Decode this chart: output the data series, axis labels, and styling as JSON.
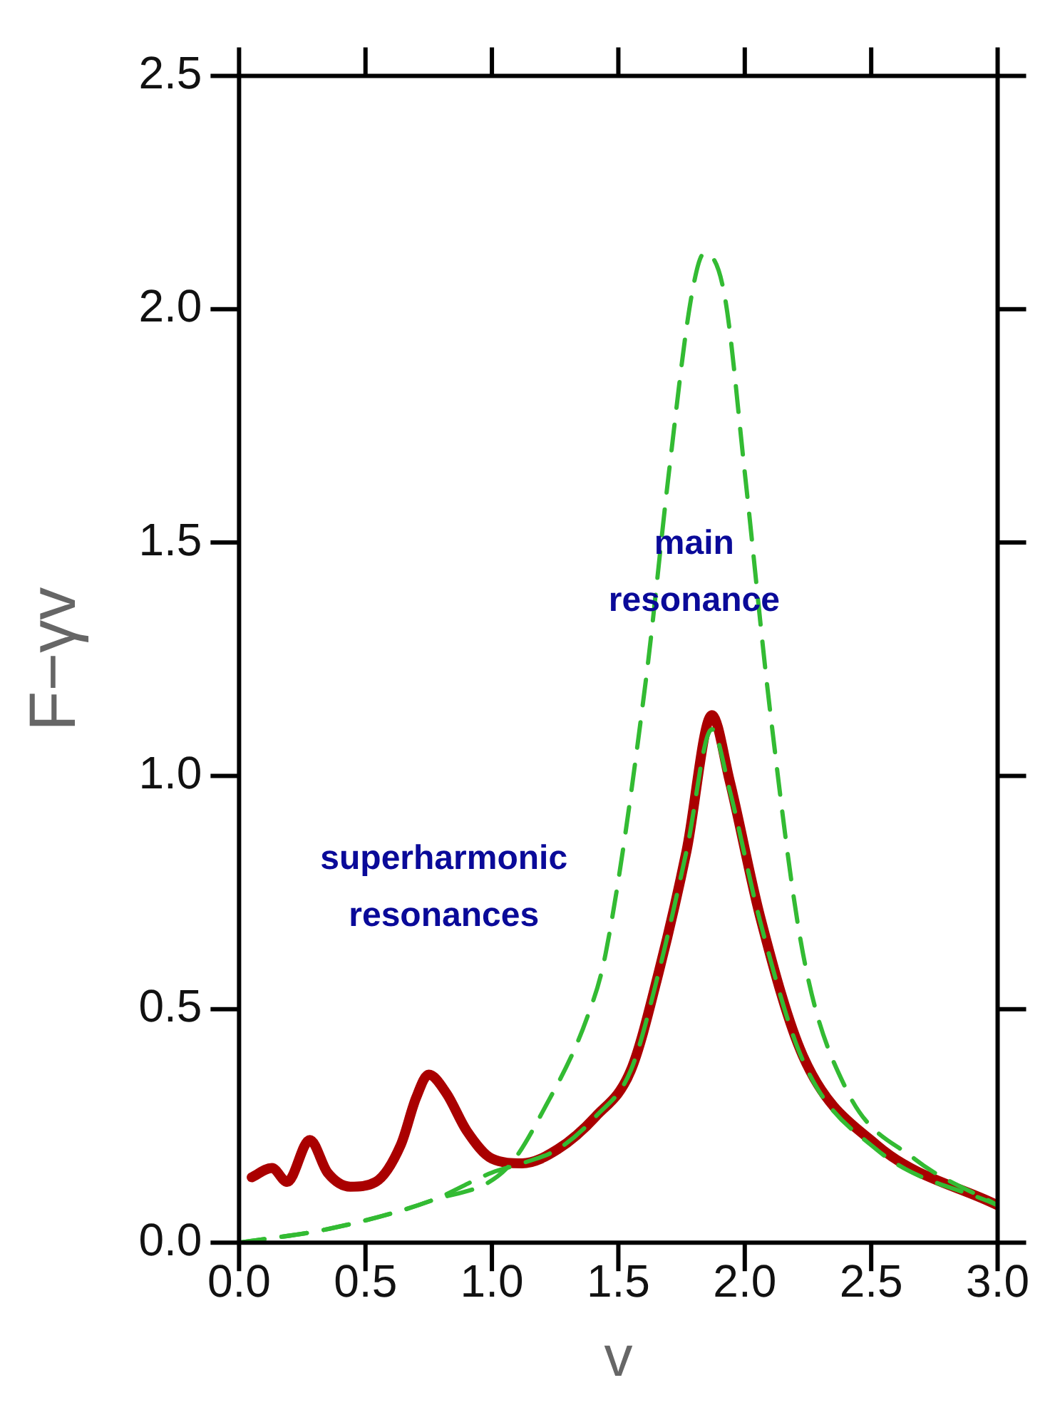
{
  "chart_data": {
    "type": "line",
    "xlabel": "v",
    "ylabel": "F−γv",
    "xlim": [
      0,
      3
    ],
    "xticks": [
      {
        "value": 0,
        "label": "0.0"
      },
      {
        "value": 0.5,
        "label": "0.5"
      },
      {
        "value": 1,
        "label": "1.0"
      },
      {
        "value": 1.5,
        "label": "1.5"
      },
      {
        "value": 2,
        "label": "2.0"
      },
      {
        "value": 2.5,
        "label": "2.5"
      },
      {
        "value": 3,
        "label": "3.0"
      }
    ],
    "ylim": [
      0,
      2.5
    ],
    "yticks": [
      {
        "value": 0,
        "label": "0.0"
      },
      {
        "value": 0.5,
        "label": "0.5"
      },
      {
        "value": 1,
        "label": "1.0"
      },
      {
        "value": 1.5,
        "label": "1.5"
      },
      {
        "value": 2,
        "label": "2.0"
      },
      {
        "value": 2.5,
        "label": "2.5"
      }
    ],
    "grid": false,
    "legend": false,
    "marker": "none",
    "series": [
      {
        "color": "#33bb33",
        "line_style": "dashed",
        "x": [
          0,
          0.36,
          0.76,
          1.06,
          1.21,
          1.375,
          1.45,
          1.61,
          1.7,
          1.79,
          1.84,
          1.92,
          2.0,
          2.1,
          2.23,
          2.4,
          2.67,
          3.0
        ],
        "values": [
          0,
          0.03,
          0.09,
          0.16,
          0.29,
          0.48,
          0.62,
          1.21,
          1.65,
          2.03,
          2.12,
          2.03,
          1.65,
          1.14,
          0.62,
          0.33,
          0.18,
          0.08
        ]
      },
      {
        "color": "#aa0000",
        "line_style": "solid",
        "x": [
          0.05,
          0.13,
          0.19,
          0.28,
          0.35,
          0.44,
          0.54,
          0.64,
          0.7,
          0.75,
          0.82,
          0.9,
          1.0,
          1.12,
          1.26,
          1.41,
          1.55,
          1.66,
          1.77,
          1.87,
          1.94,
          2.06,
          2.23,
          2.52,
          3.0
        ],
        "values": [
          0.14,
          0.16,
          0.13,
          0.22,
          0.15,
          0.12,
          0.13,
          0.21,
          0.31,
          0.36,
          0.32,
          0.24,
          0.18,
          0.17,
          0.2,
          0.27,
          0.37,
          0.58,
          0.84,
          1.13,
          0.99,
          0.7,
          0.4,
          0.21,
          0.08
        ]
      },
      {
        "color": "#33bb33",
        "line_style": "dashed",
        "x": [
          0,
          0.36,
          0.76,
          1.0,
          1.12,
          1.26,
          1.41,
          1.55,
          1.66,
          1.77,
          1.87,
          1.94,
          2.06,
          2.23,
          2.52,
          3.0
        ],
        "values": [
          0,
          0.03,
          0.09,
          0.15,
          0.17,
          0.2,
          0.27,
          0.37,
          0.58,
          0.84,
          1.1,
          0.97,
          0.69,
          0.39,
          0.2,
          0.08
        ]
      }
    ],
    "annotations": [
      "superharmonic resonances",
      "main resonance"
    ]
  }
}
